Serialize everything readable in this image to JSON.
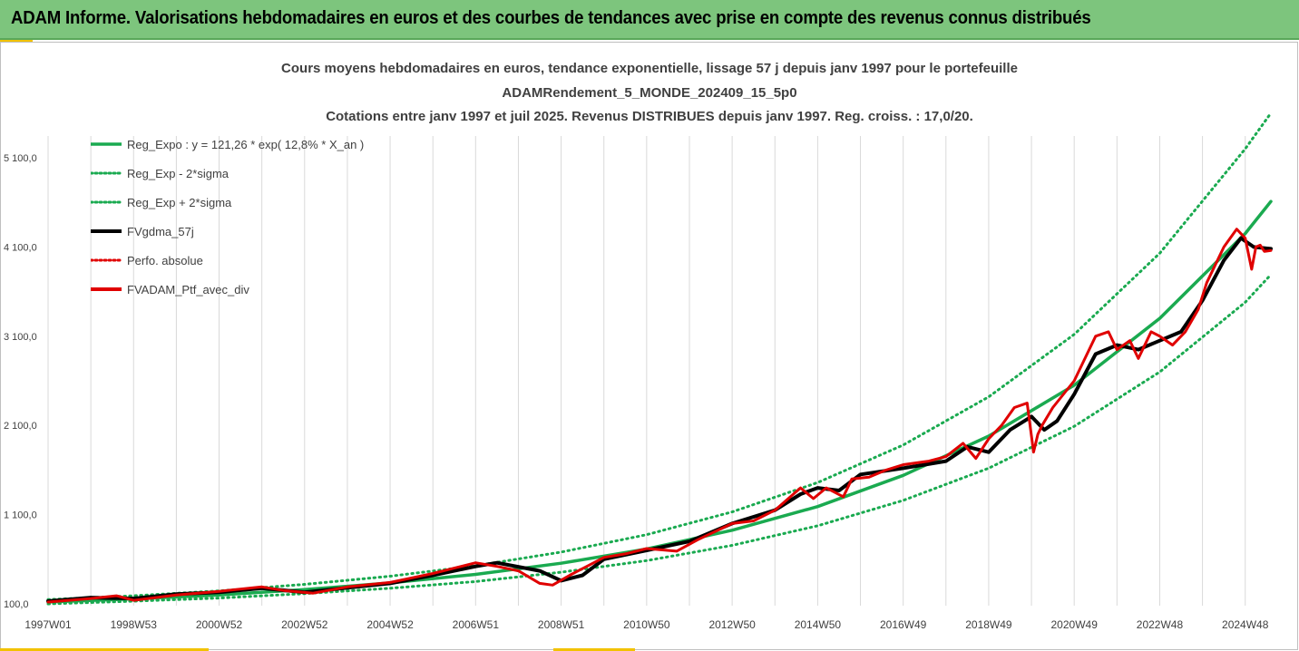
{
  "header": {
    "banner_title": "ADAM Informe. Valorisations hebdomadaires en euros et des courbes de tendances avec prise en compte des revenus connus distribués"
  },
  "colors": {
    "banner": "#7dc57d",
    "accent": "#f2c200",
    "reg_expo": "#1aaa50",
    "sigma_bands": "#1aaa50",
    "fvgdma": "#000000",
    "perfo_absolue": "#e00000",
    "fvadam": "#e00000",
    "grid": "#d9d9d9"
  },
  "chart_data": {
    "type": "line",
    "title_lines": [
      "Cours moyens hebdomadaires en euros, tendance exponentielle, lissage 57 j depuis janv 1997 pour le portefeuille",
      "ADAMRendement_5_MONDE_202409_15_5p0",
      "Cotations entre janv 1997 et juil 2025. Revenus DISTRIBUES depuis janv 1997. Reg. croiss. : 17,0/20."
    ],
    "y_ticks": [
      "100,0",
      "1 100,0",
      "2 100,0",
      "3 100,0",
      "4 100,0",
      "5 100,0"
    ],
    "y_tick_values": [
      100,
      1100,
      2100,
      3100,
      4100,
      5100
    ],
    "ylim": [
      100,
      5100
    ],
    "x_ticks": [
      "1997W01",
      "1998W53",
      "2000W52",
      "2002W52",
      "2004W52",
      "2006W51",
      "2008W51",
      "2010W50",
      "2012W50",
      "2014W50",
      "2016W49",
      "2018W49",
      "2020W49",
      "2022W48",
      "2024W48"
    ],
    "x_tick_years": [
      1997.0,
      1999.0,
      2001.0,
      2003.0,
      2005.0,
      2007.0,
      2009.0,
      2011.0,
      2013.0,
      2015.0,
      2017.0,
      2019.0,
      2021.0,
      2023.0,
      2025.0
    ],
    "x_end_year": 2025.6,
    "grid_vertical": true,
    "legend_position": "top-left",
    "series": [
      {
        "name": "Reg_Expo : y = 121,26 * exp( 12,8% *  X_an )",
        "style": "solid",
        "color": "#1aaa50",
        "x": [
          1997.0,
          1999.0,
          2001.0,
          2003.0,
          2005.0,
          2007.0,
          2009.0,
          2011.0,
          2013.0,
          2015.0,
          2017.0,
          2019.0,
          2021.0,
          2023.0,
          2025.0,
          2025.6
        ],
        "y": [
          121,
          156,
          200,
          260,
          335,
          430,
          555,
          715,
          925,
          1190,
          1540,
          1980,
          2550,
          3300,
          4250,
          4610
        ]
      },
      {
        "name": "Reg_Exp - 2*sigma",
        "style": "dotted",
        "color": "#1aaa50",
        "x": [
          1997.0,
          1999.0,
          2001.0,
          2003.0,
          2005.0,
          2007.0,
          2009.0,
          2011.0,
          2013.0,
          2015.0,
          2017.0,
          2019.0,
          2021.0,
          2023.0,
          2025.0,
          2025.6
        ],
        "y": [
          100,
          130,
          165,
          215,
          275,
          350,
          455,
          585,
          755,
          975,
          1260,
          1620,
          2090,
          2700,
          3480,
          3790
        ]
      },
      {
        "name": "Reg_Exp + 2*sigma",
        "style": "dotted",
        "color": "#1aaa50",
        "x": [
          1997.0,
          1999.0,
          2001.0,
          2003.0,
          2005.0,
          2007.0,
          2009.0,
          2011.0,
          2013.0,
          2015.0,
          2017.0,
          2019.0,
          2021.0,
          2023.0,
          2025.0,
          2025.6
        ],
        "y": [
          148,
          190,
          245,
          318,
          410,
          527,
          680,
          875,
          1130,
          1460,
          1880,
          2420,
          3120,
          4030,
          5200,
          5600
        ]
      },
      {
        "name": "FVgdma_57j",
        "style": "solid",
        "color": "#000000",
        "x": [
          1997.0,
          1998.0,
          1999.0,
          2000.0,
          2001.0,
          2002.0,
          2003.0,
          2004.0,
          2005.0,
          2006.0,
          2007.0,
          2007.5,
          2008.5,
          2009.0,
          2009.5,
          2010.0,
          2011.0,
          2011.5,
          2012.0,
          2013.0,
          2014.0,
          2014.6,
          2015.0,
          2015.5,
          2016.0,
          2017.0,
          2018.0,
          2018.5,
          2019.0,
          2019.5,
          2020.0,
          2020.3,
          2020.6,
          2021.0,
          2021.5,
          2022.0,
          2022.5,
          2023.0,
          2023.5,
          2024.0,
          2024.5,
          2024.9,
          2025.2,
          2025.6
        ],
        "y": [
          130,
          170,
          160,
          210,
          230,
          275,
          230,
          280,
          330,
          420,
          520,
          560,
          470,
          360,
          420,
          600,
          700,
          750,
          800,
          1000,
          1150,
          1330,
          1400,
          1370,
          1550,
          1620,
          1700,
          1860,
          1800,
          2050,
          2200,
          2050,
          2150,
          2450,
          2900,
          3000,
          2950,
          3050,
          3150,
          3500,
          3950,
          4200,
          4100,
          4080
        ]
      },
      {
        "name": "Perfo. absolue",
        "style": "dotted",
        "color": "#e00000",
        "x": [],
        "y": []
      },
      {
        "name": "FVADAM_Ptf_avec_div",
        "style": "solid",
        "color": "#e00000",
        "x": [
          1997.0,
          1998.0,
          1998.6,
          1999.0,
          2000.0,
          2001.0,
          2002.0,
          2002.5,
          2003.2,
          2004.0,
          2005.0,
          2006.0,
          2006.5,
          2007.0,
          2007.5,
          2008.0,
          2008.5,
          2008.8,
          2009.2,
          2009.6,
          2010.0,
          2010.5,
          2011.0,
          2011.7,
          2012.2,
          2013.0,
          2013.5,
          2014.0,
          2014.6,
          2014.9,
          2015.2,
          2015.6,
          2015.8,
          2016.2,
          2016.6,
          2017.0,
          2017.6,
          2018.0,
          2018.4,
          2018.7,
          2019.0,
          2019.3,
          2019.6,
          2019.9,
          2020.05,
          2020.15,
          2020.25,
          2020.5,
          2021.0,
          2021.5,
          2021.8,
          2022.0,
          2022.3,
          2022.5,
          2022.8,
          2023.0,
          2023.3,
          2023.6,
          2023.9,
          2024.1,
          2024.5,
          2024.8,
          2025.0,
          2025.15,
          2025.25,
          2025.35,
          2025.45,
          2025.6
        ],
        "y": [
          120,
          160,
          190,
          140,
          200,
          240,
          290,
          250,
          220,
          290,
          340,
          440,
          500,
          560,
          520,
          470,
          330,
          310,
          420,
          520,
          620,
          660,
          720,
          690,
          820,
          1000,
          1030,
          1150,
          1400,
          1280,
          1400,
          1300,
          1500,
          1520,
          1600,
          1660,
          1700,
          1750,
          1900,
          1730,
          1950,
          2100,
          2300,
          2350,
          1800,
          2000,
          2100,
          2300,
          2600,
          3100,
          3150,
          2950,
          3050,
          2850,
          3150,
          3100,
          3000,
          3150,
          3400,
          3700,
          4100,
          4300,
          4200,
          3850,
          4100,
          4120,
          4050,
          4060
        ]
      }
    ]
  }
}
